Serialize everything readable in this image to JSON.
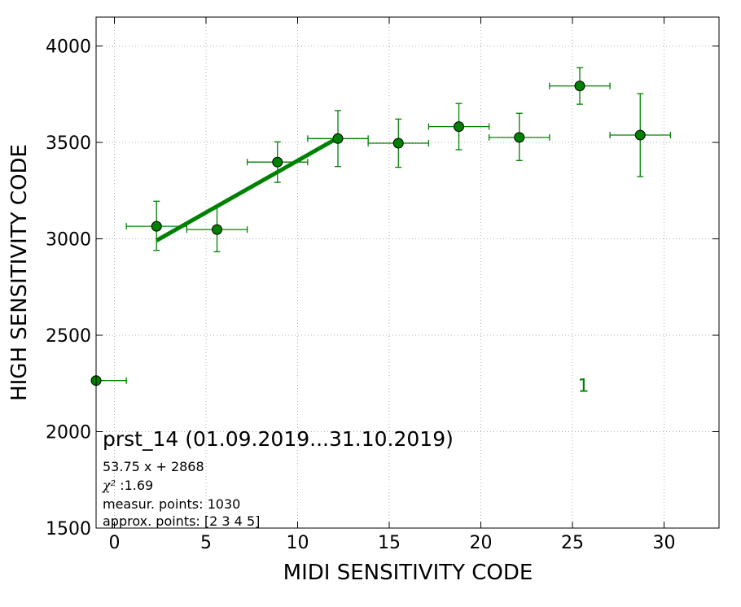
{
  "chart_data": {
    "type": "scatter",
    "title": "",
    "xlabel": "MIDI SENSITIVITY CODE",
    "ylabel": "HIGH SENSITIVITY CODE",
    "xlim": [
      -1,
      33
    ],
    "ylim": [
      1500,
      4150
    ],
    "xticks": [
      0,
      5,
      10,
      15,
      20,
      25,
      30
    ],
    "yticks": [
      1500,
      2000,
      2500,
      3000,
      3500,
      4000
    ],
    "xtick_labels": [
      "0",
      "5",
      "10",
      "15",
      "20",
      "25",
      "30"
    ],
    "ytick_labels": [
      "1500",
      "2000",
      "2500",
      "3000",
      "3500",
      "4000"
    ],
    "grid": true,
    "color": "#008000",
    "series": [
      {
        "points": [
          {
            "x": -1.0,
            "y": 2265,
            "xerr": [
              0,
              1.65
            ],
            "yerr": [
              0,
              0
            ]
          },
          {
            "x": 2.3,
            "y": 3065,
            "xerr": [
              1.65,
              1.65
            ],
            "yerr": [
              125,
              130
            ]
          },
          {
            "x": 5.6,
            "y": 3048,
            "xerr": [
              1.65,
              1.65
            ],
            "yerr": [
              115,
              120
            ]
          },
          {
            "x": 8.9,
            "y": 3398,
            "xerr": [
              1.65,
              1.65
            ],
            "yerr": [
              105,
              105
            ]
          },
          {
            "x": 12.2,
            "y": 3520,
            "xerr": [
              1.65,
              1.65
            ],
            "yerr": [
              145,
              145
            ]
          },
          {
            "x": 15.5,
            "y": 3496,
            "xerr": [
              1.65,
              1.65
            ],
            "yerr": [
              125,
              125
            ]
          },
          {
            "x": 18.8,
            "y": 3582,
            "xerr": [
              1.65,
              1.65
            ],
            "yerr": [
              120,
              120
            ]
          },
          {
            "x": 22.1,
            "y": 3526,
            "xerr": [
              1.65,
              1.65
            ],
            "yerr": [
              120,
              125
            ]
          },
          {
            "x": 25.4,
            "y": 3793,
            "xerr": [
              1.65,
              1.65
            ],
            "yerr": [
              95,
              95
            ]
          },
          {
            "x": 28.7,
            "y": 3538,
            "xerr": [
              1.65,
              1.65
            ],
            "yerr": [
              215,
              215
            ]
          }
        ]
      }
    ],
    "fit_line": {
      "slope": 53.75,
      "intercept": 2868,
      "x_range": [
        2.3,
        12.2
      ]
    },
    "annotations": [
      {
        "text": "1",
        "x": 25.6,
        "y": 2240
      }
    ],
    "info": {
      "title": "prst_14 (01.09.2019...31.10.2019)",
      "equation": "53.75 x + 2868",
      "chi2_symbol": "χ²",
      "chi2_value": " :1.69",
      "measur_points": "measur. points: 1030",
      "approx_points": "approx. points: [2 3 4 5]"
    }
  }
}
